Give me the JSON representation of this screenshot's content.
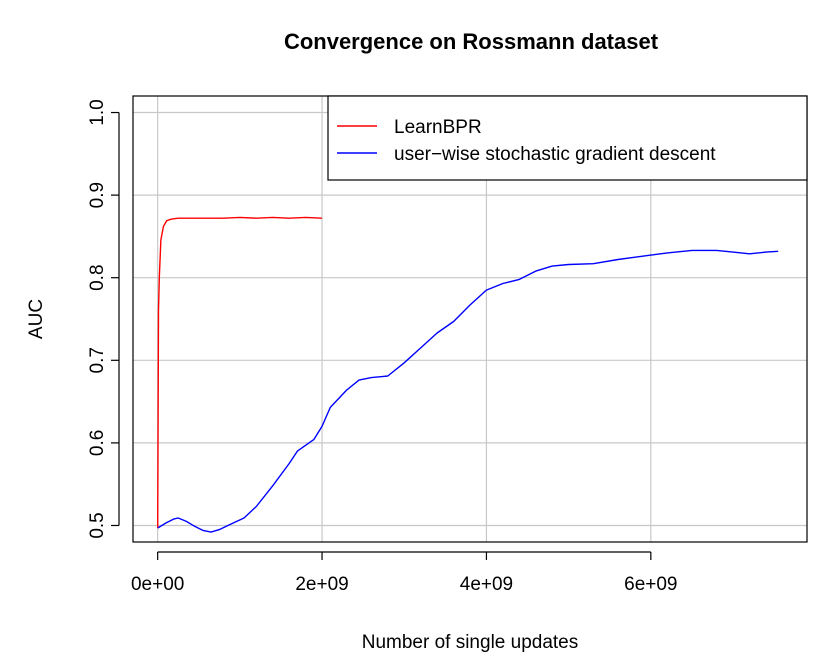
{
  "chart_data": {
    "type": "line",
    "title": "Convergence on Rossmann dataset",
    "xlabel": "Number of single updates",
    "ylabel": "AUC",
    "xlim": [
      -300000000.0,
      7900000000.0
    ],
    "ylim": [
      0.48,
      1.02
    ],
    "x_ticks": [
      0,
      2000000000,
      4000000000,
      6000000000
    ],
    "x_tick_labels": [
      "0e+00",
      "2e+09",
      "4e+09",
      "6e+09"
    ],
    "y_ticks": [
      0.5,
      0.6,
      0.7,
      0.8,
      0.9,
      1.0
    ],
    "y_tick_labels": [
      "0.5",
      "0.6",
      "0.7",
      "0.8",
      "0.9",
      "1.0"
    ],
    "grid": true,
    "legend": "top-right",
    "series": [
      {
        "name": "LearnBPR",
        "color": "#ff0000",
        "x": [
          0,
          10000000,
          20000000,
          40000000,
          70000000,
          110000000,
          170000000,
          250000000,
          400000000,
          600000000,
          800000000,
          1000000000,
          1200000000,
          1400000000,
          1600000000,
          1800000000,
          2000000000
        ],
        "y": [
          0.497,
          0.76,
          0.8,
          0.846,
          0.862,
          0.869,
          0.871,
          0.872,
          0.872,
          0.872,
          0.872,
          0.873,
          0.872,
          0.873,
          0.872,
          0.873,
          0.872
        ]
      },
      {
        "name": "user−wise stochastic gradient descent",
        "color": "#0000ff",
        "x": [
          0,
          100000000,
          200000000,
          250000000,
          350000000,
          450000000,
          550000000,
          650000000,
          750000000,
          900000000,
          1050000000,
          1200000000,
          1400000000,
          1600000000,
          1700000000,
          1900000000,
          2000000000,
          2100000000,
          2300000000,
          2450000000,
          2600000000,
          2800000000,
          3000000000,
          3200000000,
          3400000000,
          3600000000,
          3800000000,
          4000000000,
          4200000000,
          4400000000,
          4600000000,
          4800000000,
          5000000000,
          5300000000,
          5600000000,
          5900000000,
          6200000000,
          6500000000,
          6800000000,
          7000000000,
          7200000000,
          7400000000,
          7550000000
        ],
        "y": [
          0.497,
          0.503,
          0.508,
          0.509,
          0.505,
          0.499,
          0.494,
          0.492,
          0.495,
          0.502,
          0.509,
          0.523,
          0.548,
          0.575,
          0.59,
          0.604,
          0.62,
          0.643,
          0.664,
          0.676,
          0.679,
          0.681,
          0.697,
          0.715,
          0.733,
          0.747,
          0.767,
          0.785,
          0.793,
          0.798,
          0.808,
          0.814,
          0.816,
          0.817,
          0.822,
          0.826,
          0.83,
          0.833,
          0.833,
          0.831,
          0.829,
          0.831,
          0.832
        ]
      }
    ]
  }
}
